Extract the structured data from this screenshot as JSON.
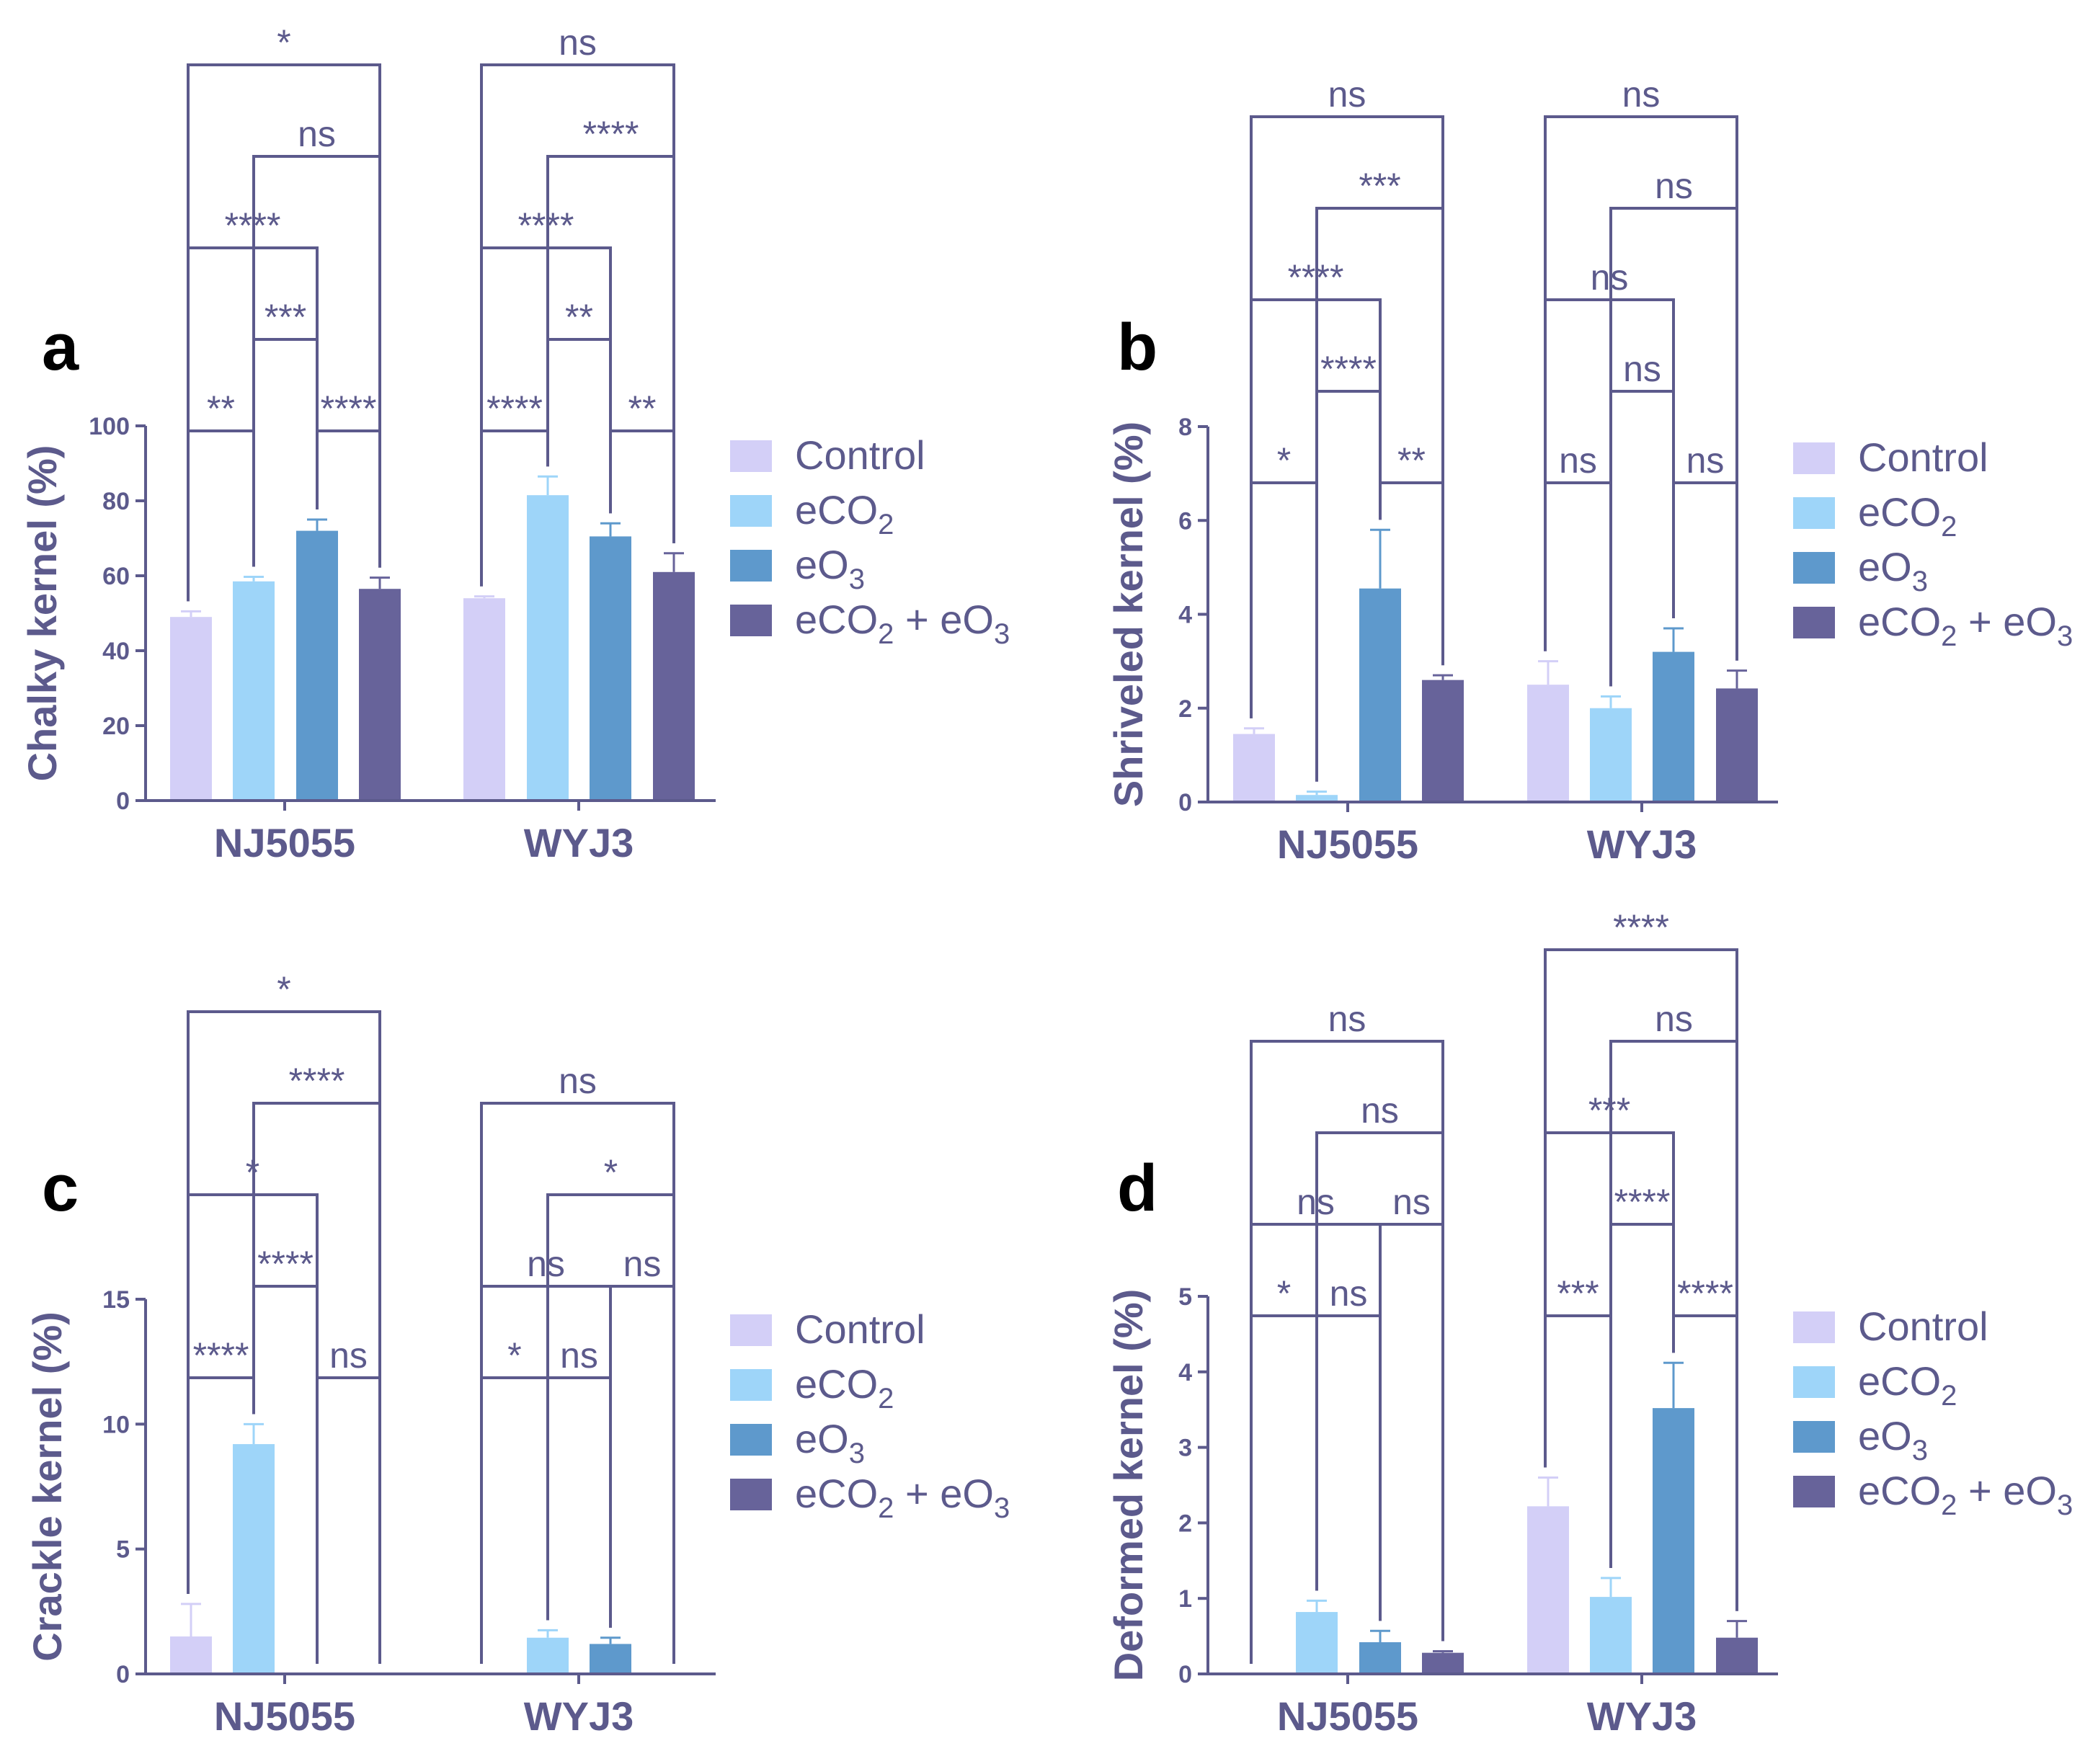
{
  "colors": {
    "axis": "#5c5a8c",
    "text": "#5c5a8c",
    "series": [
      "#d3cff7",
      "#9ed5f9",
      "#5e99cc",
      "#67639a"
    ]
  },
  "legend_labels": [
    {
      "main": "Control",
      "sub": "",
      "tail": ""
    },
    {
      "main": "eCO",
      "sub": "2",
      "tail": ""
    },
    {
      "main": "eO",
      "sub": "3",
      "tail": ""
    },
    {
      "main": "eCO",
      "sub": "2",
      "tail": " + eO",
      "sub2": "3"
    }
  ],
  "chart_data": [
    {
      "id": "a",
      "panel_label": "a",
      "type": "bar",
      "ylabel": "Chalky kernel (%)",
      "ylim": [
        0,
        100
      ],
      "yticks": [
        0,
        20,
        40,
        60,
        80,
        100
      ],
      "categories": [
        "NJ5055",
        "WYJ3"
      ],
      "series": [
        {
          "name": "Control",
          "values": [
            49,
            54
          ],
          "errors": [
            1.5,
            0.5
          ]
        },
        {
          "name": "eCO2",
          "values": [
            58.5,
            81.5
          ],
          "errors": [
            1.2,
            5
          ]
        },
        {
          "name": "eO3",
          "values": [
            72,
            70.5
          ],
          "errors": [
            3,
            3.5
          ]
        },
        {
          "name": "eCO2 + eO3",
          "values": [
            56.5,
            61
          ],
          "errors": [
            3,
            5
          ]
        }
      ],
      "comparisons": [
        {
          "g": 0,
          "a": 0,
          "b": 1,
          "level": 0,
          "label": "**"
        },
        {
          "g": 0,
          "a": 2,
          "b": 3,
          "level": 0,
          "label": "****"
        },
        {
          "g": 0,
          "a": 1,
          "b": 2,
          "level": 1,
          "label": "***"
        },
        {
          "g": 0,
          "a": 0,
          "b": 2,
          "level": 2,
          "label": "****"
        },
        {
          "g": 0,
          "a": 1,
          "b": 3,
          "level": 3,
          "label": "ns"
        },
        {
          "g": 0,
          "a": 0,
          "b": 3,
          "level": 4,
          "label": "*"
        },
        {
          "g": 1,
          "a": 0,
          "b": 1,
          "level": 0,
          "label": "****"
        },
        {
          "g": 1,
          "a": 2,
          "b": 3,
          "level": 0,
          "label": "**"
        },
        {
          "g": 1,
          "a": 1,
          "b": 2,
          "level": 1,
          "label": "**"
        },
        {
          "g": 1,
          "a": 0,
          "b": 2,
          "level": 2,
          "label": "****"
        },
        {
          "g": 1,
          "a": 1,
          "b": 3,
          "level": 3,
          "label": "****"
        },
        {
          "g": 1,
          "a": 0,
          "b": 3,
          "level": 4,
          "label": "ns"
        }
      ]
    },
    {
      "id": "b",
      "panel_label": "b",
      "type": "bar",
      "ylabel": "Shriveled kernel (%)",
      "ylim": [
        0,
        8
      ],
      "yticks": [
        0,
        2,
        4,
        6,
        8
      ],
      "categories": [
        "NJ5055",
        "WYJ3"
      ],
      "series": [
        {
          "name": "Control",
          "values": [
            1.45,
            2.5
          ],
          "errors": [
            0.12,
            0.5
          ]
        },
        {
          "name": "eCO2",
          "values": [
            0.15,
            2.0
          ],
          "errors": [
            0.07,
            0.25
          ]
        },
        {
          "name": "eO3",
          "values": [
            4.55,
            3.2
          ],
          "errors": [
            1.25,
            0.5
          ]
        },
        {
          "name": "eCO2 + eO3",
          "values": [
            2.6,
            2.42
          ],
          "errors": [
            0.1,
            0.38
          ]
        }
      ],
      "comparisons": [
        {
          "g": 0,
          "a": 0,
          "b": 1,
          "level": 0,
          "label": "*"
        },
        {
          "g": 0,
          "a": 2,
          "b": 3,
          "level": 0,
          "label": "**"
        },
        {
          "g": 0,
          "a": 1,
          "b": 2,
          "level": 1,
          "label": "****"
        },
        {
          "g": 0,
          "a": 0,
          "b": 2,
          "level": 2,
          "label": "****"
        },
        {
          "g": 0,
          "a": 1,
          "b": 3,
          "level": 3,
          "label": "***"
        },
        {
          "g": 0,
          "a": 0,
          "b": 3,
          "level": 4,
          "label": "ns"
        },
        {
          "g": 1,
          "a": 0,
          "b": 1,
          "level": 0,
          "label": "ns"
        },
        {
          "g": 1,
          "a": 2,
          "b": 3,
          "level": 0,
          "label": "ns"
        },
        {
          "g": 1,
          "a": 1,
          "b": 2,
          "level": 1,
          "label": "ns"
        },
        {
          "g": 1,
          "a": 0,
          "b": 2,
          "level": 2,
          "label": "ns"
        },
        {
          "g": 1,
          "a": 1,
          "b": 3,
          "level": 3,
          "label": "ns"
        },
        {
          "g": 1,
          "a": 0,
          "b": 3,
          "level": 4,
          "label": "ns"
        }
      ]
    },
    {
      "id": "c",
      "panel_label": "c",
      "type": "bar",
      "ylabel": "Crackle kernel (%)",
      "ylim": [
        0,
        15
      ],
      "yticks": [
        0,
        5,
        10,
        15
      ],
      "categories": [
        "NJ5055",
        "WYJ3"
      ],
      "series": [
        {
          "name": "Control",
          "values": [
            1.5,
            0
          ],
          "errors": [
            1.3,
            0
          ]
        },
        {
          "name": "eCO2",
          "values": [
            9.2,
            1.45
          ],
          "errors": [
            0.8,
            0.3
          ]
        },
        {
          "name": "eO3",
          "values": [
            0,
            1.2
          ],
          "errors": [
            0,
            0.25
          ]
        },
        {
          "name": "eCO2 + eO3",
          "values": [
            0,
            0
          ],
          "errors": [
            0,
            0
          ]
        }
      ],
      "comparisons": [
        {
          "g": 0,
          "a": 0,
          "b": 1,
          "level": 0,
          "label": "****"
        },
        {
          "g": 0,
          "a": 2,
          "b": 3,
          "level": 0,
          "label": "ns"
        },
        {
          "g": 0,
          "a": 1,
          "b": 2,
          "level": 1,
          "label": "****"
        },
        {
          "g": 0,
          "a": 0,
          "b": 2,
          "level": 2,
          "label": "*"
        },
        {
          "g": 0,
          "a": 1,
          "b": 3,
          "level": 3,
          "label": "****"
        },
        {
          "g": 0,
          "a": 0,
          "b": 3,
          "level": 4,
          "label": "*"
        },
        {
          "g": 1,
          "a": 0,
          "b": 1,
          "level": 0,
          "label": "*"
        },
        {
          "g": 1,
          "a": 1,
          "b": 2,
          "level": 0,
          "label": "ns"
        },
        {
          "g": 1,
          "a": 0,
          "b": 2,
          "level": 1,
          "label": "ns"
        },
        {
          "g": 1,
          "a": 2,
          "b": 3,
          "level": 1,
          "label": "ns"
        },
        {
          "g": 1,
          "a": 1,
          "b": 3,
          "level": 2,
          "label": "*"
        },
        {
          "g": 1,
          "a": 0,
          "b": 3,
          "level": 3,
          "label": "ns"
        }
      ]
    },
    {
      "id": "d",
      "panel_label": "d",
      "type": "bar",
      "ylabel": "Deformed kernel (%)",
      "ylim": [
        0,
        5
      ],
      "yticks": [
        0,
        1,
        2,
        3,
        4,
        5
      ],
      "categories": [
        "NJ5055",
        "WYJ3"
      ],
      "series": [
        {
          "name": "Control",
          "values": [
            0,
            2.22
          ],
          "errors": [
            0,
            0.38
          ]
        },
        {
          "name": "eCO2",
          "values": [
            0.82,
            1.02
          ],
          "errors": [
            0.15,
            0.25
          ]
        },
        {
          "name": "eO3",
          "values": [
            0.42,
            3.52
          ],
          "errors": [
            0.15,
            0.6
          ]
        },
        {
          "name": "eCO2 + eO3",
          "values": [
            0.28,
            0.48
          ],
          "errors": [
            0.02,
            0.22
          ]
        }
      ],
      "comparisons": [
        {
          "g": 0,
          "a": 0,
          "b": 1,
          "level": 0,
          "label": "*"
        },
        {
          "g": 0,
          "a": 1,
          "b": 2,
          "level": 0,
          "label": "ns"
        },
        {
          "g": 0,
          "a": 0,
          "b": 2,
          "level": 1,
          "label": "ns"
        },
        {
          "g": 0,
          "a": 2,
          "b": 3,
          "level": 1,
          "label": "ns"
        },
        {
          "g": 0,
          "a": 1,
          "b": 3,
          "level": 2,
          "label": "ns"
        },
        {
          "g": 0,
          "a": 0,
          "b": 3,
          "level": 3,
          "label": "ns"
        },
        {
          "g": 1,
          "a": 0,
          "b": 1,
          "level": 0,
          "label": "***"
        },
        {
          "g": 1,
          "a": 2,
          "b": 3,
          "level": 0,
          "label": "****"
        },
        {
          "g": 1,
          "a": 1,
          "b": 2,
          "level": 1,
          "label": "****"
        },
        {
          "g": 1,
          "a": 0,
          "b": 2,
          "level": 2,
          "label": "***"
        },
        {
          "g": 1,
          "a": 1,
          "b": 3,
          "level": 3,
          "label": "ns"
        },
        {
          "g": 1,
          "a": 0,
          "b": 3,
          "level": 4,
          "label": "****"
        }
      ]
    }
  ]
}
